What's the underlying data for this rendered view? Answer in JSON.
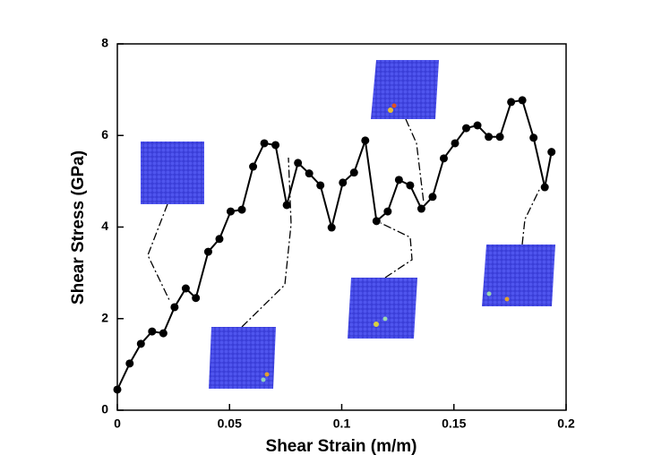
{
  "chart_data": {
    "type": "line",
    "x_label": "Shear Strain (m/m)",
    "y_label": "Shear Stress (GPa)",
    "xlim": [
      0,
      0.2
    ],
    "xticks": [
      0,
      0.05,
      0.1,
      0.15,
      0.2
    ],
    "ylim": [
      0,
      8
    ],
    "yticks": [
      0,
      2,
      4,
      6,
      8
    ],
    "series": [
      {
        "color": "#000000",
        "x": [
          0,
          0.0055,
          0.0105,
          0.0155,
          0.0205,
          0.0255,
          0.0305,
          0.035,
          0.0405,
          0.0455,
          0.0505,
          0.0555,
          0.0605,
          0.0655,
          0.0705,
          0.0755,
          0.0805,
          0.0855,
          0.0905,
          0.0955,
          0.1005,
          0.1055,
          0.1105,
          0.1155,
          0.1205,
          0.1255,
          0.1305,
          0.1355,
          0.1405,
          0.1455,
          0.1505,
          0.1555,
          0.1605,
          0.1655,
          0.1705,
          0.1755,
          0.1805,
          0.1855,
          0.1905,
          0.1935
        ],
        "values": [
          0.45,
          1.02,
          1.45,
          1.72,
          1.68,
          2.25,
          2.66,
          2.45,
          3.46,
          3.74,
          4.34,
          4.38,
          5.32,
          5.83,
          5.79,
          4.48,
          5.4,
          5.17,
          4.91,
          3.99,
          4.97,
          5.19,
          5.89,
          4.13,
          4.34,
          5.03,
          4.91,
          4.4,
          4.66,
          5.5,
          5.83,
          6.16,
          6.22,
          5.97,
          5.97,
          6.73,
          6.77,
          5.95,
          4.87,
          5.64
        ]
      }
    ]
  }
}
